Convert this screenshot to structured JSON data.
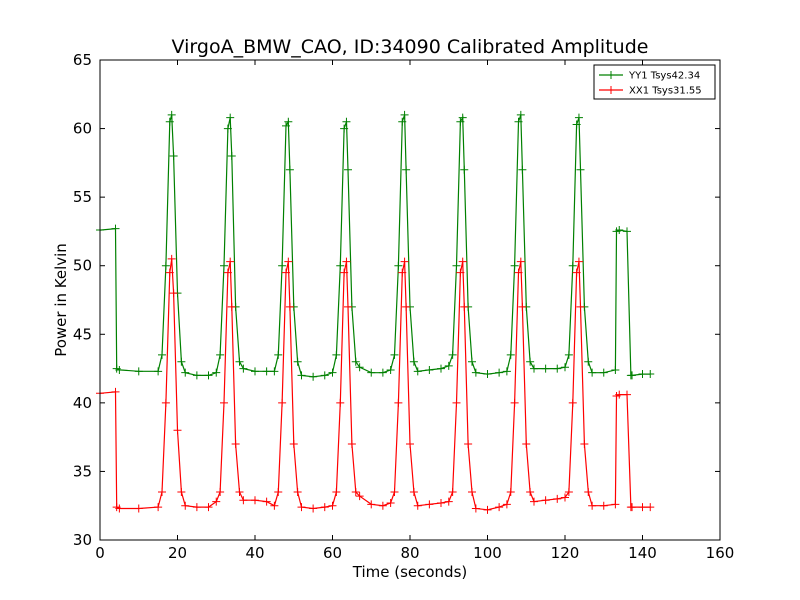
{
  "chart_data": {
    "type": "line",
    "title": "VirgoA_BMW_CAO, ID:34090 Calibrated Amplitude",
    "xlabel": "Time (seconds)",
    "ylabel": "Power in Kelvin",
    "xlim": [
      0,
      160
    ],
    "ylim": [
      30,
      65
    ],
    "xticks": [
      "0",
      "20",
      "40",
      "60",
      "80",
      "100",
      "120",
      "140",
      "160"
    ],
    "yticks": [
      "30",
      "35",
      "40",
      "45",
      "50",
      "55",
      "60",
      "65"
    ],
    "grid": false,
    "legend_position": "top-right",
    "marker": "plus",
    "series": [
      {
        "name": "YY1 Tsys42.34",
        "color": "#008000",
        "x": [
          0,
          4,
          4.3,
          5,
          10,
          15,
          16,
          17,
          18,
          18.5,
          19,
          20,
          21,
          22,
          25,
          28,
          30,
          31,
          32,
          33,
          33.6,
          34,
          35,
          36,
          37,
          40,
          43,
          45,
          46,
          47,
          48,
          48.6,
          49,
          50,
          51,
          52,
          55,
          58,
          60,
          61,
          62,
          63,
          63.6,
          64,
          65,
          66,
          67,
          70,
          73,
          75,
          76,
          77,
          78,
          78.6,
          79,
          80,
          81,
          82,
          85,
          88,
          90,
          91,
          92,
          93,
          93.6,
          94,
          95,
          96,
          97,
          100,
          103,
          105,
          106,
          107,
          108,
          108.6,
          109,
          110,
          111,
          112,
          115,
          118,
          120,
          121,
          122,
          123,
          123.6,
          124,
          125,
          126,
          127,
          130,
          133,
          133.3,
          134,
          136,
          137,
          137.3,
          140,
          142
        ],
        "y": [
          52.6,
          52.7,
          42.5,
          42.4,
          42.3,
          42.3,
          43.5,
          50,
          60.5,
          61,
          58,
          48,
          43,
          42.2,
          42,
          42,
          42.2,
          43.5,
          50,
          60,
          60.8,
          58,
          47,
          43,
          42.5,
          42.3,
          42.3,
          42.3,
          43.5,
          50,
          60.2,
          60.5,
          57,
          47,
          43,
          42,
          41.9,
          42,
          42.2,
          43.5,
          50,
          60,
          60.5,
          57,
          47,
          43,
          42.6,
          42.2,
          42.2,
          42.4,
          43.5,
          50,
          60.5,
          61,
          57,
          47,
          43,
          42.3,
          42.4,
          42.5,
          42.7,
          43.5,
          50,
          60.5,
          60.8,
          57,
          47,
          43,
          42.2,
          42.1,
          42.2,
          42.3,
          43.5,
          50,
          60.5,
          61,
          57,
          47,
          43,
          42.5,
          42.5,
          42.5,
          42.6,
          43.5,
          50,
          60.3,
          60.8,
          57,
          47,
          43,
          42.2,
          42.2,
          42.4,
          52.5,
          52.6,
          52.5,
          42,
          42,
          42.1,
          42.1
        ]
      },
      {
        "name": "XX1 Tsys31.55",
        "color": "#ff0000",
        "x": [
          0,
          4,
          4.3,
          5,
          10,
          15,
          16,
          17,
          18,
          18.5,
          19,
          20,
          21,
          22,
          25,
          28,
          30,
          31,
          32,
          33,
          33.6,
          34,
          35,
          36,
          37,
          40,
          43,
          45,
          46,
          47,
          48,
          48.6,
          49,
          50,
          51,
          52,
          55,
          58,
          60,
          61,
          62,
          63,
          63.6,
          64,
          65,
          66,
          67,
          70,
          73,
          75,
          76,
          77,
          78,
          78.6,
          79,
          80,
          81,
          82,
          85,
          88,
          90,
          91,
          92,
          93,
          93.6,
          94,
          95,
          96,
          97,
          100,
          103,
          105,
          106,
          107,
          108,
          108.6,
          109,
          110,
          111,
          112,
          115,
          118,
          120,
          121,
          122,
          123,
          123.6,
          124,
          125,
          126,
          127,
          130,
          133,
          133.3,
          134,
          136,
          137,
          137.3,
          140,
          142
        ],
        "y": [
          40.7,
          40.8,
          32.4,
          32.3,
          32.3,
          32.4,
          33.5,
          40,
          49.5,
          50.5,
          48,
          38,
          33.5,
          32.5,
          32.4,
          32.4,
          32.8,
          33.5,
          40,
          49.5,
          50.3,
          47,
          37,
          33.5,
          32.9,
          32.9,
          32.8,
          32.5,
          33.5,
          40,
          49.5,
          50.3,
          47,
          37,
          33.5,
          32.4,
          32.3,
          32.4,
          32.5,
          33.5,
          40,
          49.5,
          50.3,
          47,
          37,
          33.5,
          33.2,
          32.6,
          32.5,
          32.7,
          33.5,
          40,
          49.5,
          50.3,
          47,
          37,
          33.5,
          32.5,
          32.6,
          32.7,
          32.8,
          33.5,
          40,
          49.5,
          50.3,
          47,
          37,
          33.5,
          32.3,
          32.2,
          32.4,
          32.6,
          33.5,
          40,
          49.5,
          50.3,
          47,
          37,
          33.5,
          32.8,
          32.9,
          33,
          33.1,
          33.5,
          40,
          49.5,
          50.3,
          47,
          37,
          33.5,
          32.5,
          32.5,
          32.6,
          40.5,
          40.6,
          40.6,
          32.4,
          32.4,
          32.4,
          32.4
        ]
      }
    ]
  }
}
